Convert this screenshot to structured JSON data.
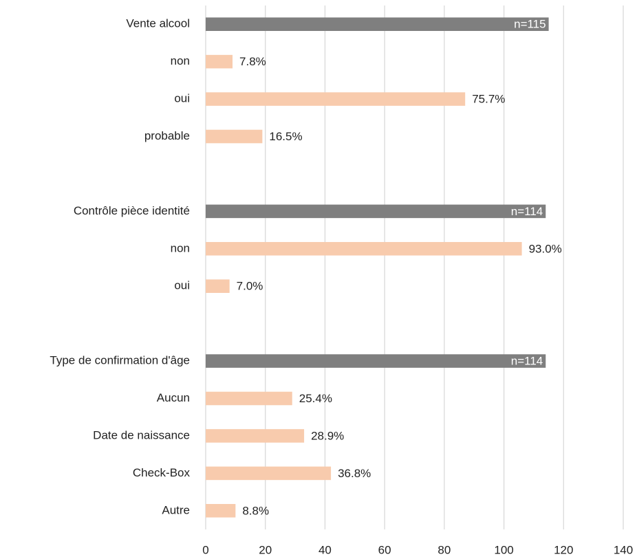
{
  "chart_data": {
    "type": "hbar",
    "categories": [
      "Vente alcool",
      "non",
      "oui",
      "probable",
      null,
      "Contrôle pièce identité",
      "non",
      "oui",
      null,
      "Type de confirmation d'âge",
      "Aucun",
      "Date de naissance",
      "Check-Box",
      "Autre"
    ],
    "values": [
      115,
      9,
      87,
      19,
      null,
      114,
      106,
      8,
      null,
      114,
      29,
      33,
      42,
      10
    ],
    "value_labels": [
      "n=115",
      "7.8%",
      "75.7%",
      "16.5%",
      null,
      "n=114",
      "93.0%",
      "7.0%",
      null,
      "n=114",
      "25.4%",
      "28.9%",
      "36.8%",
      "8.8%"
    ],
    "colors": [
      "#7f7f7f",
      "#f8cbad",
      "#f8cbad",
      "#f8cbad",
      null,
      "#7f7f7f",
      "#f8cbad",
      "#f8cbad",
      null,
      "#7f7f7f",
      "#f8cbad",
      "#f8cbad",
      "#f8cbad",
      "#f8cbad"
    ],
    "xlim": [
      0,
      140
    ],
    "xticks": [
      0,
      20,
      40,
      60,
      80,
      100,
      120,
      140
    ],
    "grid": true
  }
}
